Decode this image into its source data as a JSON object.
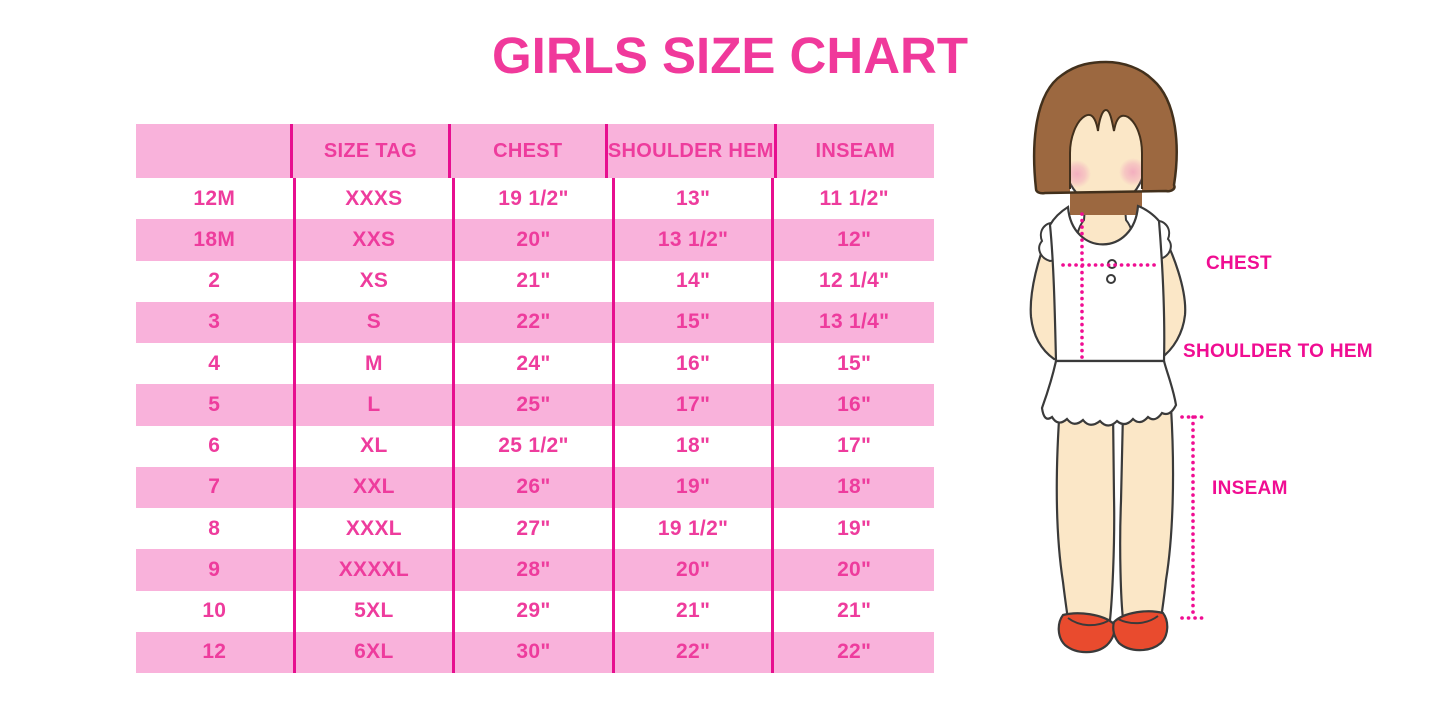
{
  "title": "GIRLS SIZE CHART",
  "chart_data": {
    "type": "table",
    "title": "GIRLS SIZE CHART",
    "columns": [
      "",
      "SIZE TAG",
      "CHEST",
      "SHOULDER HEM",
      "INSEAM"
    ],
    "rows": [
      [
        "12M",
        "XXXS",
        "19 1/2\"",
        "13\"",
        "11 1/2\""
      ],
      [
        "18M",
        "XXS",
        "20\"",
        "13 1/2\"",
        "12\""
      ],
      [
        "2",
        "XS",
        "21\"",
        "14\"",
        "12 1/4\""
      ],
      [
        "3",
        "S",
        "22\"",
        "15\"",
        "13 1/4\""
      ],
      [
        "4",
        "M",
        "24\"",
        "16\"",
        "15\""
      ],
      [
        "5",
        "L",
        "25\"",
        "17\"",
        "16\""
      ],
      [
        "6",
        "XL",
        "25 1/2\"",
        "18\"",
        "17\""
      ],
      [
        "7",
        "XXL",
        "26\"",
        "19\"",
        "18\""
      ],
      [
        "8",
        "XXXL",
        "27\"",
        "19 1/2\"",
        "19\""
      ],
      [
        "9",
        "XXXXL",
        "28\"",
        "20\"",
        "20\""
      ],
      [
        "10",
        "5XL",
        "29\"",
        "21\"",
        "21\""
      ],
      [
        "12",
        "6XL",
        "30\"",
        "22\"",
        "22\""
      ]
    ],
    "layout": {
      "header_background": "pink",
      "row_stripes": "white/pink alternating",
      "gridlines": "vertical only"
    }
  },
  "figure": {
    "description_labels": {
      "chest": "CHEST",
      "shoulder_to_hem": "SHOULDER TO HEM",
      "inseam": "INSEAM"
    }
  },
  "colors": {
    "title_pink": "#F0399B",
    "row_pink": "#F9B2DB",
    "table_text_pink": "#EE3C9D",
    "grid_line_magenta": "#E70F8F",
    "measure_line_magenta": "#F00D92",
    "hair_brown": "#9C6840",
    "skin": "#FBE7C7",
    "blush": "#F2A8BE",
    "shoe_red": "#E94B2E",
    "outline_dark": "#3A3A3A",
    "garment_white": "#FFFFFF"
  }
}
